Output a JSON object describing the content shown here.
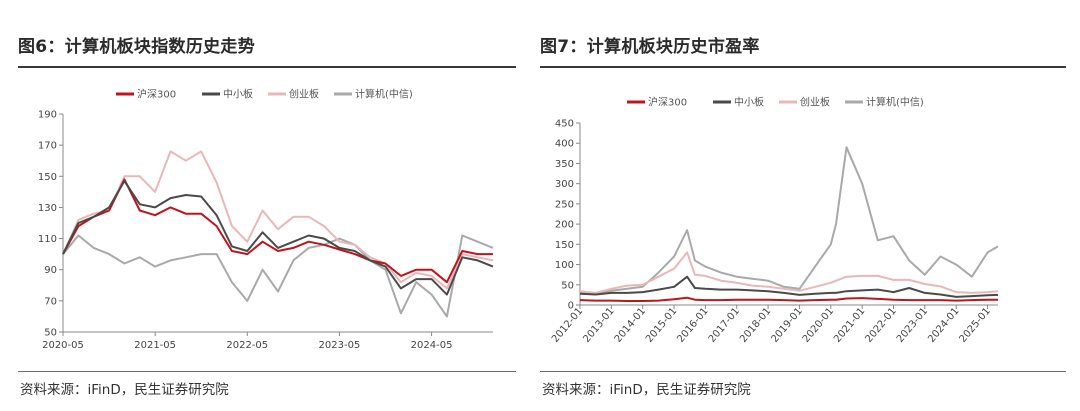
{
  "figures": [
    {
      "title": "图6：计算机板块指数历史走势",
      "source": "资料来源：iFinD，民生证券研究院"
    },
    {
      "title": "图7：计算机板块历史市盈率",
      "source": "资料来源：iFinD，民生证券研究院"
    }
  ],
  "chart_data": [
    {
      "type": "line",
      "legend_position": "top-center",
      "grid": false,
      "ylim": [
        50,
        190
      ],
      "yticks": [
        50,
        70,
        90,
        110,
        130,
        150,
        170,
        190
      ],
      "xticks": [
        "2020-05",
        "2021-05",
        "2022-05",
        "2023-05",
        "2024-05"
      ],
      "x": [
        "2020-05",
        "2020-07",
        "2020-09",
        "2020-11",
        "2021-01",
        "2021-03",
        "2021-05",
        "2021-07",
        "2021-09",
        "2021-11",
        "2022-01",
        "2022-03",
        "2022-05",
        "2022-07",
        "2022-09",
        "2022-11",
        "2023-01",
        "2023-03",
        "2023-05",
        "2023-07",
        "2023-09",
        "2023-11",
        "2024-01",
        "2024-03",
        "2024-05",
        "2024-07",
        "2024-09",
        "2024-11",
        "2025-01"
      ],
      "series": [
        {
          "name": "沪深300",
          "color": "#c0141c",
          "values": [
            100,
            118,
            124,
            128,
            148,
            128,
            125,
            130,
            126,
            126,
            118,
            102,
            100,
            108,
            102,
            104,
            108,
            106,
            103,
            100,
            96,
            94,
            86,
            90,
            90,
            82,
            102,
            100,
            100
          ]
        },
        {
          "name": "中小板",
          "color": "#4a4a4a",
          "values": [
            100,
            120,
            124,
            130,
            147,
            132,
            130,
            136,
            138,
            137,
            125,
            105,
            102,
            114,
            104,
            108,
            112,
            110,
            104,
            102,
            96,
            92,
            78,
            84,
            84,
            74,
            98,
            96,
            92
          ]
        },
        {
          "name": "创业板",
          "color": "#e9b7b7",
          "values": [
            100,
            122,
            126,
            128,
            150,
            150,
            140,
            166,
            160,
            166,
            146,
            118,
            108,
            128,
            116,
            124,
            124,
            118,
            108,
            106,
            98,
            94,
            82,
            88,
            86,
            78,
            100,
            98,
            96
          ]
        },
        {
          "name": "计算机(中信)",
          "color": "#a9a9a9",
          "values": [
            100,
            112,
            104,
            100,
            94,
            98,
            92,
            96,
            98,
            100,
            100,
            82,
            70,
            90,
            76,
            96,
            104,
            106,
            110,
            106,
            96,
            90,
            62,
            82,
            74,
            60,
            112,
            108,
            104
          ]
        }
      ]
    },
    {
      "type": "line",
      "legend_position": "top-center",
      "grid": false,
      "ylim": [
        0,
        450
      ],
      "yticks": [
        0,
        50,
        100,
        150,
        200,
        250,
        300,
        350,
        400,
        450
      ],
      "xticks": [
        "2012-01",
        "2013-01",
        "2014-01",
        "2015-01",
        "2016-01",
        "2017-01",
        "2018-01",
        "2019-01",
        "2020-01",
        "2021-01",
        "2022-01",
        "2023-01",
        "2024-01",
        "2025-01"
      ],
      "x": [
        "2012-01",
        "2012-07",
        "2013-01",
        "2013-07",
        "2014-01",
        "2014-07",
        "2015-01",
        "2015-06",
        "2015-09",
        "2016-01",
        "2016-07",
        "2017-01",
        "2017-07",
        "2018-01",
        "2018-07",
        "2019-01",
        "2019-07",
        "2020-01",
        "2020-03",
        "2020-07",
        "2021-01",
        "2021-07",
        "2022-01",
        "2022-07",
        "2023-01",
        "2023-07",
        "2024-01",
        "2024-07",
        "2025-01",
        "2025-05"
      ],
      "series": [
        {
          "name": "沪深300",
          "color": "#c0141c",
          "values": [
            12,
            11,
            11,
            10,
            10,
            11,
            14,
            18,
            13,
            12,
            12,
            13,
            13,
            13,
            12,
            11,
            12,
            13,
            13,
            16,
            17,
            15,
            13,
            12,
            12,
            12,
            11,
            12,
            13,
            13
          ]
        },
        {
          "name": "中小板",
          "color": "#4a4a4a",
          "values": [
            28,
            26,
            30,
            30,
            32,
            38,
            45,
            70,
            42,
            40,
            38,
            38,
            36,
            34,
            30,
            25,
            28,
            30,
            30,
            34,
            36,
            38,
            32,
            42,
            30,
            26,
            20,
            22,
            24,
            25
          ]
        },
        {
          "name": "创业板",
          "color": "#e9b7b7",
          "values": [
            34,
            30,
            40,
            48,
            50,
            70,
            90,
            130,
            75,
            72,
            60,
            55,
            48,
            45,
            40,
            35,
            45,
            55,
            60,
            70,
            72,
            72,
            62,
            62,
            52,
            46,
            32,
            30,
            32,
            34
          ]
        },
        {
          "name": "计算机(中信)",
          "color": "#a9a9a9",
          "values": [
            30,
            28,
            35,
            40,
            45,
            80,
            120,
            185,
            110,
            95,
            80,
            70,
            65,
            60,
            45,
            40,
            95,
            150,
            200,
            390,
            300,
            160,
            170,
            110,
            75,
            120,
            100,
            70,
            130,
            145
          ]
        }
      ]
    }
  ]
}
